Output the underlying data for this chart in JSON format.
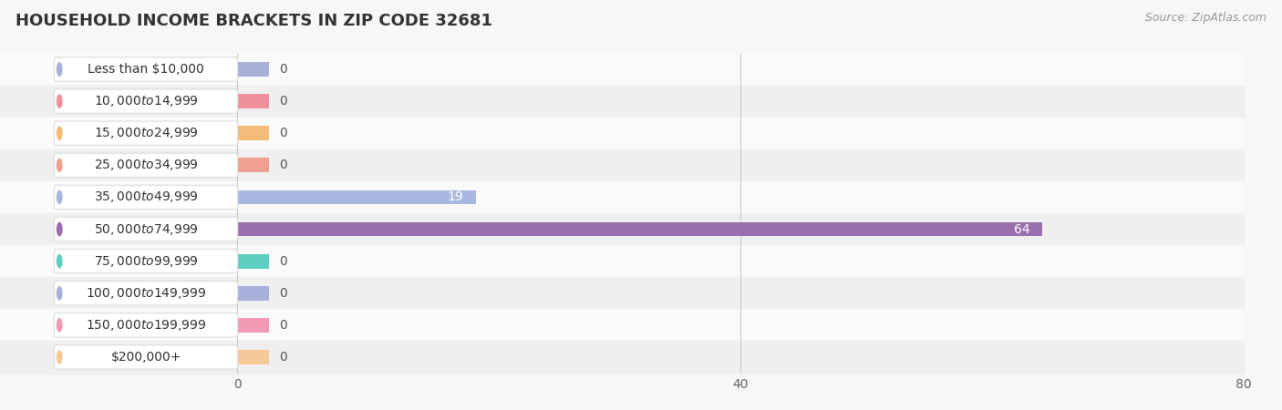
{
  "title": "HOUSEHOLD INCOME BRACKETS IN ZIP CODE 32681",
  "source": "Source: ZipAtlas.com",
  "categories": [
    "Less than $10,000",
    "$10,000 to $14,999",
    "$15,000 to $24,999",
    "$25,000 to $34,999",
    "$35,000 to $49,999",
    "$50,000 to $74,999",
    "$75,000 to $99,999",
    "$100,000 to $149,999",
    "$150,000 to $199,999",
    "$200,000+"
  ],
  "values": [
    0,
    0,
    0,
    0,
    19,
    64,
    0,
    0,
    0,
    0
  ],
  "bar_colors": [
    "#a8b0d8",
    "#f0909c",
    "#f5bb78",
    "#f0a090",
    "#a8b8e0",
    "#9b6fae",
    "#5ecfbf",
    "#a8b0dc",
    "#f09ab4",
    "#f5c898"
  ],
  "xlim": [
    0,
    80
  ],
  "xticks": [
    0,
    40,
    80
  ],
  "bg_color": "#f7f7f7",
  "row_alt_color": "#efefef",
  "row_white_color": "#fafafa",
  "title_fontsize": 13,
  "source_fontsize": 9,
  "tick_fontsize": 10,
  "label_fontsize": 10,
  "value_color_inside": "#ffffff",
  "value_color_outside": "#555555",
  "label_box_color": "#ffffff",
  "label_box_edge": "#dddddd",
  "grid_color": "#cccccc"
}
